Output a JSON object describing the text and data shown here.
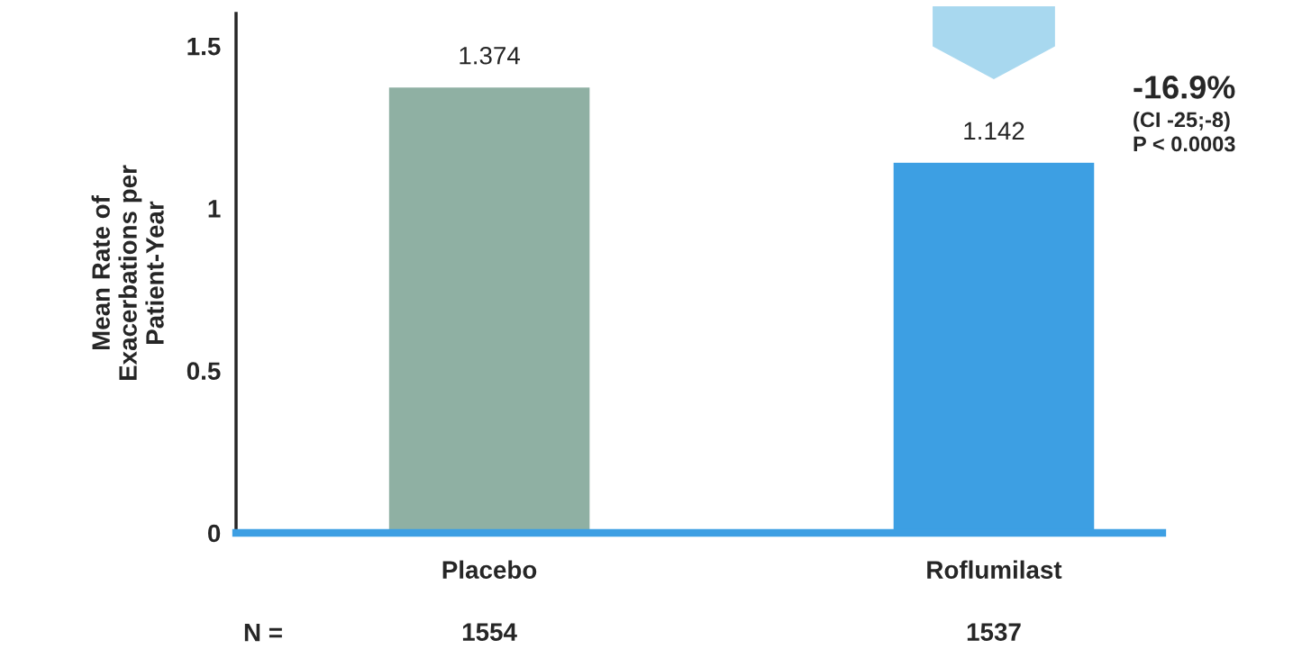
{
  "chart_data": {
    "type": "bar",
    "ylabel": "Mean Rate of\nExacerbations per\nPatient-Year",
    "categories": [
      "Placebo",
      "Roflumilast"
    ],
    "values": [
      1.374,
      1.142
    ],
    "colors": [
      "#8fb0a3",
      "#3d9fe3"
    ],
    "data_labels": true,
    "ylim": [
      0,
      1.6
    ],
    "yticks": [
      0,
      0.5,
      1,
      1.5
    ],
    "grid": false,
    "legend": false,
    "annotations": [
      "-16.9%",
      "(CI -25;-8)",
      "P < 0.0003",
      "N =",
      "1554",
      "1537"
    ]
  }
}
